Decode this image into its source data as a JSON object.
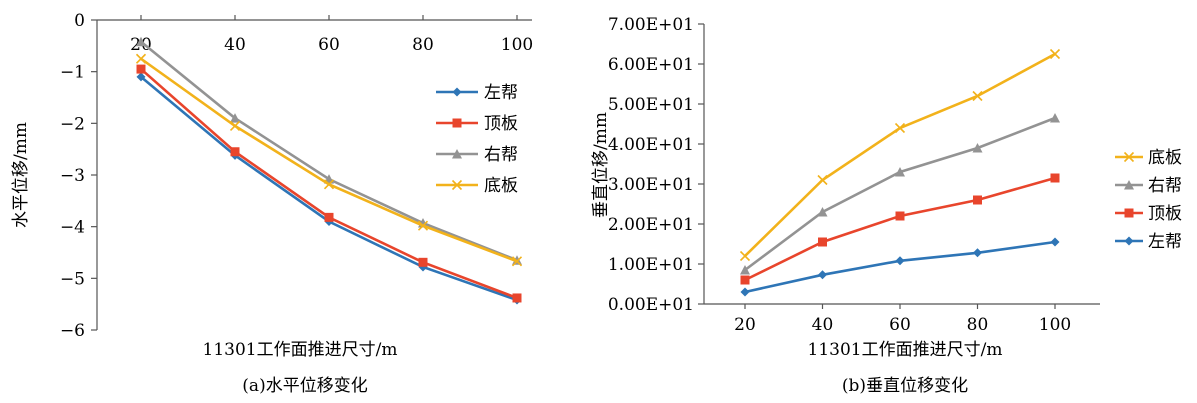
{
  "chart_data": [
    {
      "type": "line",
      "title": "",
      "caption": "(a)水平位移变化",
      "xlabel": "11301工作面推进尺寸/m",
      "ylabel": "水平位移/mm",
      "categories": [
        "20",
        "40",
        "60",
        "80",
        "100"
      ],
      "ylim": [
        -6,
        0
      ],
      "y_ticks": [
        "0",
        "−1",
        "−2",
        "−3",
        "−4",
        "−5",
        "−6"
      ],
      "x_axis_position": "top",
      "grid": false,
      "legend_position": "right",
      "series": [
        {
          "name": "左帮",
          "color": "#2e75b6",
          "marker": "diamond",
          "values": [
            -1.1,
            -2.62,
            -3.9,
            -4.78,
            -5.42
          ]
        },
        {
          "name": "顶板",
          "color": "#e8452c",
          "marker": "square",
          "values": [
            -0.95,
            -2.55,
            -3.82,
            -4.69,
            -5.38
          ]
        },
        {
          "name": "右帮",
          "color": "#939393",
          "marker": "triangle",
          "values": [
            -0.42,
            -1.9,
            -3.08,
            -3.93,
            -4.65
          ]
        },
        {
          "name": "底板",
          "color": "#f2b21b",
          "marker": "x",
          "values": [
            -0.75,
            -2.05,
            -3.18,
            -3.98,
            -4.67
          ]
        }
      ]
    },
    {
      "type": "line",
      "title": "",
      "caption": "(b)垂直位移变化",
      "xlabel": "11301工作面推进尺寸/m",
      "ylabel": "垂直位移/mm",
      "categories": [
        "20",
        "40",
        "60",
        "80",
        "100"
      ],
      "ylim": [
        0,
        70
      ],
      "y_ticks": [
        "0.00E+01",
        "1.00E+01",
        "2.00E+01",
        "3.00E+01",
        "4.00E+01",
        "5.00E+01",
        "6.00E+01",
        "7.00E+01"
      ],
      "grid": false,
      "legend_position": "right",
      "series": [
        {
          "name": "底板",
          "color": "#f2b21b",
          "marker": "x",
          "values": [
            12,
            31,
            44,
            52,
            62.5
          ]
        },
        {
          "name": "右帮",
          "color": "#939393",
          "marker": "triangle",
          "values": [
            8.5,
            23,
            33,
            39,
            46.5
          ]
        },
        {
          "name": "顶板",
          "color": "#e8452c",
          "marker": "square",
          "values": [
            6,
            15.5,
            22,
            26,
            31.5
          ]
        },
        {
          "name": "左帮",
          "color": "#2e75b6",
          "marker": "diamond",
          "values": [
            3,
            7.3,
            10.8,
            12.8,
            15.5
          ]
        }
      ]
    }
  ]
}
